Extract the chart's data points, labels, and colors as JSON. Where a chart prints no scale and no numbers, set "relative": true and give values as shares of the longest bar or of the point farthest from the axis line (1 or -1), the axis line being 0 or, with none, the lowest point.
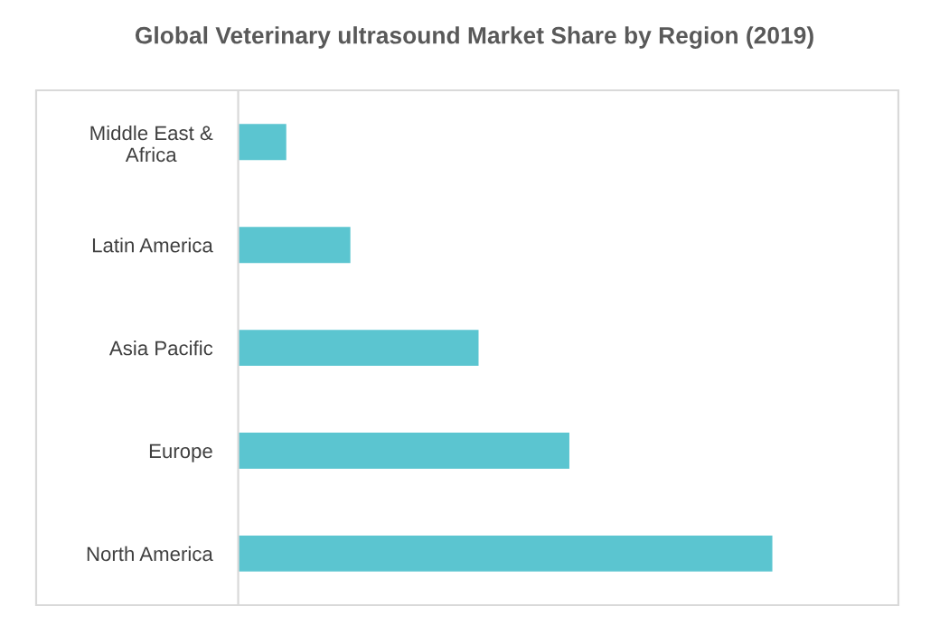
{
  "chart_data": {
    "type": "bar",
    "title": "Global Veterinary ultrasound Market Share by Region (2019)",
    "orientation": "horizontal",
    "relative": true,
    "categories": [
      "Middle East &\nAfrica",
      "Latin America",
      "Asia Pacific",
      "Europe",
      "North America"
    ],
    "values": [
      0.09,
      0.21,
      0.45,
      0.62,
      1
    ],
    "color": "#5bc5d0",
    "grid": false,
    "legend": false
  }
}
